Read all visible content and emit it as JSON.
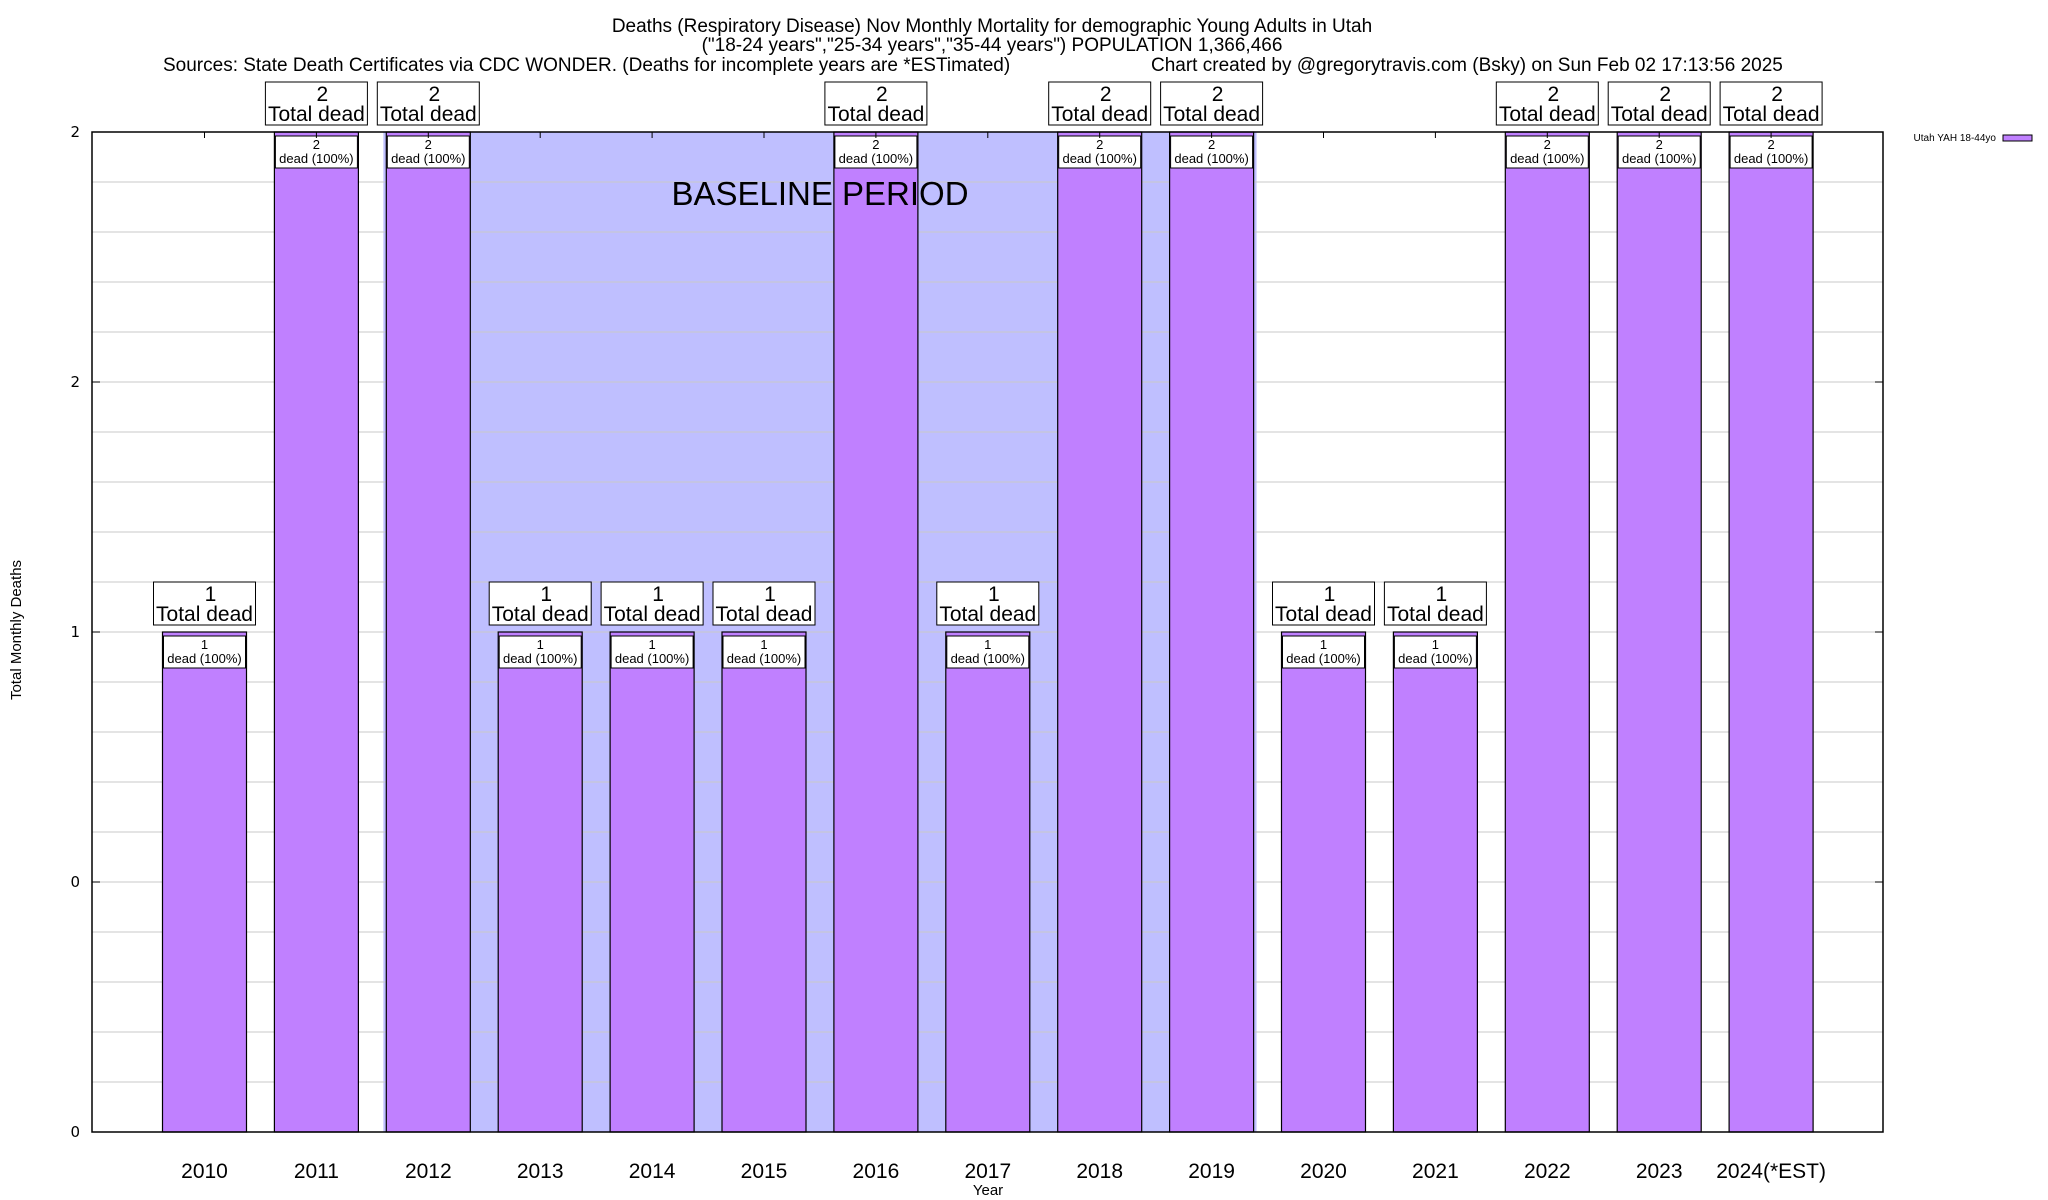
{
  "chart_data": {
    "type": "bar",
    "title_lines": [
      "Deaths (Respiratory Disease) Nov Monthly Mortality for demographic Young Adults in Utah",
      "(\"18-24 years\",\"25-34 years\",\"35-44 years\") POPULATION 1,366,466",
      "Sources: State Death Certificates via CDC WONDER. (Deaths for incomplete years are *ESTimated)",
      "Chart created by @gregorytravis.com (Bsky) on Sun Feb 02 17:13:56 2025"
    ],
    "xlabel": "Year",
    "ylabel": "Total Monthly Deaths",
    "categories": [
      "2010",
      "2011",
      "2012",
      "2013",
      "2014",
      "2015",
      "2016",
      "2017",
      "2018",
      "2019",
      "2020",
      "2021",
      "2022",
      "2023",
      "2024(*EST)"
    ],
    "series": [
      {
        "name": "Utah YAH 18-44yo",
        "color": "#c080ff",
        "values": [
          1,
          2,
          2,
          1,
          1,
          1,
          2,
          1,
          2,
          2,
          1,
          1,
          2,
          2,
          2
        ]
      }
    ],
    "total_label_suffix": "Total dead",
    "inner_label_suffix": "dead (100%)",
    "ylim": [
      0,
      2
    ],
    "yticks": [
      {
        "value": 0,
        "label": "0"
      },
      {
        "value": 0.5,
        "label": "0"
      },
      {
        "value": 1,
        "label": "1"
      },
      {
        "value": 1.5,
        "label": "2"
      },
      {
        "value": 2,
        "label": "2"
      }
    ],
    "grid": true,
    "baseline_period": {
      "label": "BASELINE PERIOD",
      "from_category": "2012",
      "to_category": "2019",
      "color": "#bfbfff"
    },
    "legend": {
      "position": "top-right",
      "entries": [
        "Utah YAH 18-44yo"
      ]
    }
  }
}
